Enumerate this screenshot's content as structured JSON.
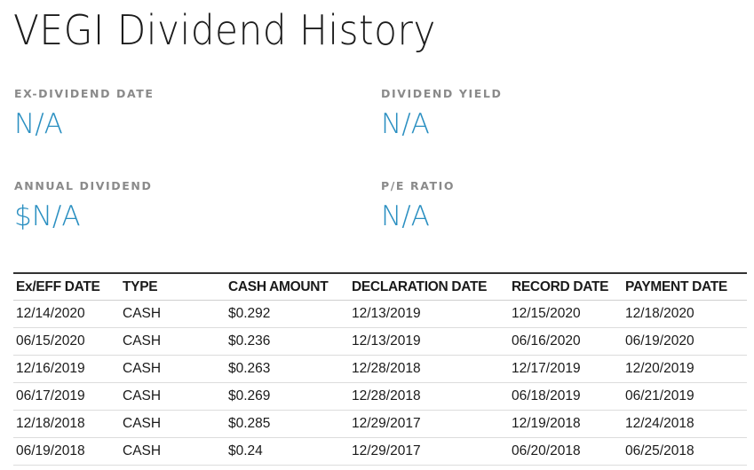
{
  "title": "VEGI Dividend History",
  "stats": {
    "ex_dividend_date": {
      "label": "EX-DIVIDEND DATE",
      "value": "N/A"
    },
    "dividend_yield": {
      "label": "DIVIDEND YIELD",
      "value": "N/A"
    },
    "annual_dividend": {
      "label": "ANNUAL DIVIDEND",
      "value": "$N/A"
    },
    "pe_ratio": {
      "label": "P/E RATIO",
      "value": "N/A"
    }
  },
  "colors": {
    "accent": "#2a8fc1",
    "label": "#8a8a8a",
    "text": "#1a1a1a"
  },
  "table": {
    "headers": [
      "Ex/EFF DATE",
      "TYPE",
      "CASH AMOUNT",
      "DECLARATION DATE",
      "RECORD DATE",
      "PAYMENT DATE"
    ],
    "rows": [
      [
        "12/14/2020",
        "CASH",
        "$0.292",
        "12/13/2019",
        "12/15/2020",
        "12/18/2020"
      ],
      [
        "06/15/2020",
        "CASH",
        "$0.236",
        "12/13/2019",
        "06/16/2020",
        "06/19/2020"
      ],
      [
        "12/16/2019",
        "CASH",
        "$0.263",
        "12/28/2018",
        "12/17/2019",
        "12/20/2019"
      ],
      [
        "06/17/2019",
        "CASH",
        "$0.269",
        "12/28/2018",
        "06/18/2019",
        "06/21/2019"
      ],
      [
        "12/18/2018",
        "CASH",
        "$0.285",
        "12/29/2017",
        "12/19/2018",
        "12/24/2018"
      ],
      [
        "06/19/2018",
        "CASH",
        "$0.24",
        "12/29/2017",
        "06/20/2018",
        "06/25/2018"
      ]
    ]
  }
}
